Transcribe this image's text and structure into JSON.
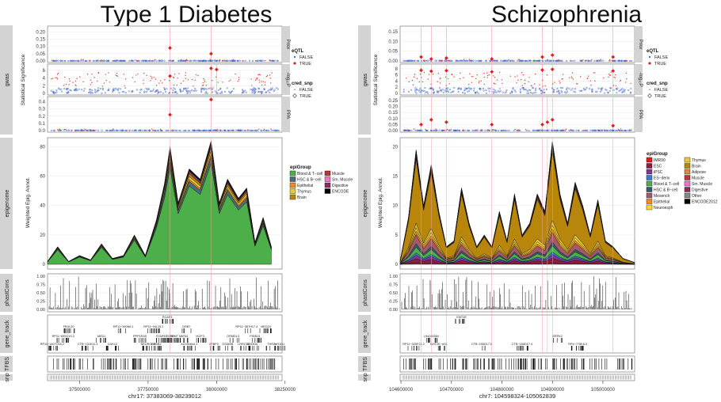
{
  "chart_data": [
    {
      "type": "multi-track-genome",
      "title": "Type 1 Diabetes",
      "xlabel": "chr17: 37383069-38239012",
      "xlim": [
        37383069,
        38239012
      ],
      "xticks": [
        37500000,
        37750000,
        38000000,
        38250000
      ],
      "xtick_labels": [
        "37500000",
        "37750000",
        "38000000",
        "38250000"
      ],
      "track_labels": [
        "gwas",
        "epigenome",
        "phastCons",
        "gene_track",
        "TFBS",
        "snp"
      ],
      "gwas_ylabel": "Statistical Significance",
      "gwas_facets": [
        {
          "name": "Prior",
          "ticks": [
            0.0,
            0.05,
            0.1,
            0.15,
            0.2
          ],
          "tick_labels": [
            "0.00",
            "0.05",
            "0.10",
            "0.15",
            "0.20"
          ],
          "ymax": 0.23,
          "highlights": [
            [
              37830000,
              0.09
            ],
            [
              37980000,
              0.05
            ]
          ]
        },
        {
          "name": "-log₁₀P",
          "ticks": [
            0,
            2,
            4,
            6
          ],
          "tick_labels": [
            "0",
            "2",
            "4",
            "6"
          ],
          "ymax": 7.2,
          "highlights": [
            [
              37830000,
              4.5
            ],
            [
              37980000,
              6.5
            ],
            [
              38000000,
              6.2
            ]
          ]
        },
        {
          "name": "PPA",
          "ticks": [
            0.0,
            0.1,
            0.2,
            0.3,
            0.4
          ],
          "tick_labels": [
            "0.0",
            "0.1",
            "0.2",
            "0.3",
            "0.4"
          ],
          "ymax": 0.45,
          "highlights": [
            [
              37830000,
              0.22
            ],
            [
              37980000,
              0.43
            ]
          ]
        }
      ],
      "gwas_legend": {
        "eqtl_title": "eQTL",
        "eqtl_items": [
          "FALSE",
          "TRUE"
        ],
        "cred_title": "cred_snp",
        "cred_items": [
          "FALSE",
          "TRUE"
        ]
      },
      "epigenome": {
        "ylabel": "Weighted Epig. Annot.",
        "yticks": [
          0,
          20,
          40,
          60,
          80
        ],
        "ymax": 84,
        "x": [
          37383069,
          37420000,
          37460000,
          37500000,
          37540000,
          37580000,
          37620000,
          37660000,
          37700000,
          37740000,
          37780000,
          37810000,
          37830000,
          37860000,
          37900000,
          37940000,
          37980000,
          38010000,
          38040000,
          38080000,
          38110000,
          38140000,
          38170000,
          38200000
        ],
        "total": [
          2,
          12,
          2,
          6,
          3,
          14,
          4,
          6,
          20,
          6,
          30,
          55,
          80,
          42,
          65,
          58,
          84,
          42,
          58,
          45,
          52,
          15,
          32,
          12
        ],
        "legend_title": "epiGroup",
        "legend_items": [
          "Blood & T−cell",
          "HSC & B−cell",
          "Epithelial",
          "Thymus",
          "Brain",
          "Muscle",
          "Sm. Muscle",
          "Digestive",
          "ENCODE"
        ],
        "series_colors": [
          "#4daf4a",
          "#4a6c7a",
          "#f08a24",
          "#e8c93a",
          "#b8860b",
          "#b03a3a",
          "#e878c8",
          "#8a2d5c",
          "#000000"
        ],
        "fractions": [
          0.82,
          0.05,
          0.02,
          0.03,
          0.03,
          0.01,
          0.01,
          0.01,
          0.02
        ]
      },
      "phastcons": {
        "yticks": [
          0,
          0.25,
          0.5,
          0.75,
          1
        ],
        "tick_labels": [
          "0.00",
          "0.25",
          "0.50",
          "0.75",
          "1.00"
        ]
      },
      "genes": [
        {
          "name": "RP11−690G19.3",
          "pos": 37440000,
          "row": 2
        },
        {
          "name": "FBXL20",
          "pos": 37460000,
          "row": 1
        },
        {
          "name": "RP11−1407O15.2",
          "pos": 37400000,
          "row": 3
        },
        {
          "name": "CTB−131K11.1",
          "pos": 37530000,
          "row": 3
        },
        {
          "name": "MED1",
          "pos": 37580000,
          "row": 2
        },
        {
          "name": "CDK12",
          "pos": 37620000,
          "row": 3
        },
        {
          "name": "RP11−390N6.1",
          "pos": 37660000,
          "row": 1
        },
        {
          "name": "PPP1R1B",
          "pos": 37720000,
          "row": 2
        },
        {
          "name": "NEUROD2",
          "pos": 37750000,
          "row": 3
        },
        {
          "name": "ERBB2",
          "pos": 37780000,
          "row": 3
        },
        {
          "name": "RP11−94L15.2",
          "pos": 37770000,
          "row": 1
        },
        {
          "name": "STARD3",
          "pos": 37800000,
          "row": 2
        },
        {
          "name": "TCAP",
          "pos": 37830000,
          "row": 2
        },
        {
          "name": "PNMT",
          "pos": 37845000,
          "row": 2
        },
        {
          "name": "PGAP3",
          "pos": 37820000,
          "row": 0
        },
        {
          "name": "MIEN1",
          "pos": 37880000,
          "row": 2
        },
        {
          "name": "IKZF3",
          "pos": 37940000,
          "row": 2
        },
        {
          "name": "GRB7",
          "pos": 37890000,
          "row": 1
        },
        {
          "name": "AC090844.1",
          "pos": 37900000,
          "row": 3
        },
        {
          "name": "ZPBP2",
          "pos": 37990000,
          "row": 3
        },
        {
          "name": "GSDMB",
          "pos": 38040000,
          "row": 3
        },
        {
          "name": "ORMDL3",
          "pos": 38060000,
          "row": 2
        },
        {
          "name": "RP11−387H17.4",
          "pos": 38110000,
          "row": 1
        },
        {
          "name": "LRRC3C",
          "pos": 38100000,
          "row": 3
        },
        {
          "name": "GSDMA",
          "pos": 38130000,
          "row": 3
        },
        {
          "name": "PSMD3",
          "pos": 38140000,
          "row": 2
        },
        {
          "name": "MED24",
          "pos": 38180000,
          "row": 1
        },
        {
          "name": "THRA",
          "pos": 38200000,
          "row": 3
        },
        {
          "name": "NR1D1",
          "pos": 38230000,
          "row": 3
        }
      ],
      "track_heights": [
        "",
        "",
        "",
        "",
        "",
        ""
      ]
    },
    {
      "type": "multi-track-genome",
      "title": "Schizophrenia",
      "xlabel": "chr7: 104598324-105062839",
      "xlim": [
        104598324,
        105062839
      ],
      "xticks": [
        104600000,
        104700000,
        104800000,
        104900000,
        105000000
      ],
      "xtick_labels": [
        "104600000",
        "104700000",
        "104800000",
        "104900000",
        "105000000"
      ],
      "track_labels": [
        "gwas",
        "epigenome",
        "phastCons",
        "gene_track",
        "TFBS",
        "snp"
      ],
      "gwas_ylabel": "Statistical Significance",
      "gwas_facets": [
        {
          "name": "Prior",
          "ticks": [
            0.0,
            0.05,
            0.1,
            0.15
          ],
          "tick_labels": [
            "0.00",
            "0.05",
            "0.10",
            "0.15"
          ],
          "ymax": 0.17,
          "highlights": [
            [
              104640000,
              0.02
            ],
            [
              104660000,
              0.01
            ],
            [
              104690000,
              0.015
            ],
            [
              104780000,
              0.01
            ],
            [
              104880000,
              0.02
            ],
            [
              104900000,
              0.03
            ],
            [
              105020000,
              0.02
            ]
          ]
        },
        {
          "name": "-log₁₀P",
          "ticks": [
            0,
            2,
            4,
            6,
            8
          ],
          "tick_labels": [
            "0",
            "2",
            "4",
            "6",
            "8"
          ],
          "ymax": 9,
          "highlights": [
            [
              104640000,
              7.5
            ],
            [
              104660000,
              7.2
            ],
            [
              104690000,
              7.4
            ],
            [
              104780000,
              7.0
            ],
            [
              104880000,
              7.6
            ],
            [
              104900000,
              7.8
            ],
            [
              105020000,
              7.3
            ]
          ]
        },
        {
          "name": "PPA",
          "ticks": [
            0.0,
            0.05,
            0.1,
            0.15,
            0.2,
            0.25
          ],
          "tick_labels": [
            "0.00",
            "0.05",
            "0.10",
            "0.15",
            "0.20",
            "0.25"
          ],
          "ymax": 0.27,
          "highlights": [
            [
              104640000,
              0.05
            ],
            [
              104660000,
              0.09
            ],
            [
              104690000,
              0.07
            ],
            [
              104780000,
              0.05
            ],
            [
              104880000,
              0.05
            ],
            [
              104890000,
              0.07
            ],
            [
              104900000,
              0.09
            ],
            [
              105020000,
              0.04
            ]
          ]
        }
      ],
      "gwas_legend": {
        "eqtl_title": "eQTL",
        "eqtl_items": [
          "FALSE",
          "TRUE"
        ],
        "cred_title": "cred_snp",
        "cred_items": [
          "FALSE",
          "TRUE"
        ]
      },
      "epigenome": {
        "ylabel": "Weighted Epig. Annot.",
        "yticks": [
          0,
          5,
          10,
          15,
          20
        ],
        "ymax": 21,
        "x": [
          104598324,
          104615000,
          104630000,
          104645000,
          104660000,
          104675000,
          104690000,
          104705000,
          104720000,
          104735000,
          104750000,
          104765000,
          104780000,
          104795000,
          104810000,
          104825000,
          104840000,
          104855000,
          104870000,
          104885000,
          104900000,
          104915000,
          104930000,
          104945000,
          104960000,
          104975000,
          104990000,
          105005000,
          105020000,
          105040000,
          105062839
        ],
        "total": [
          0.5,
          8,
          19.5,
          10,
          17,
          9,
          3,
          4,
          13,
          7,
          3,
          5,
          3,
          9,
          4,
          12,
          5,
          7,
          12,
          9,
          21,
          12,
          7,
          14,
          10,
          5,
          11,
          4,
          3,
          1,
          0.3
        ],
        "legend_title": "epiGroup",
        "legend_items": [
          "IMR90",
          "ESC",
          "iPSC",
          "ES−deriv",
          "Blood & T−cell",
          "HSC & B−cell",
          "Mesench",
          "Epithelial",
          "Neuroesph",
          "Thymus",
          "Brain",
          "Adipose",
          "Muscle",
          "Sm. Muscle",
          "Digestive",
          "Other",
          "ENCODE2012"
        ],
        "series_colors": [
          "#e41a1c",
          "#8b1e3f",
          "#7a3a9a",
          "#3b7dc4",
          "#4daf4a",
          "#3a5a6a",
          "#a05a6a",
          "#f08a24",
          "#ffd92f",
          "#e8c93a",
          "#b8860b",
          "#d8884a",
          "#b03a3a",
          "#e878c8",
          "#8a2d5c",
          "#888888",
          "#000000"
        ],
        "fractions": [
          0.01,
          0.04,
          0.03,
          0.02,
          0.05,
          0.03,
          0.08,
          0.03,
          0.03,
          0.04,
          0.56,
          0.02,
          0.02,
          0.01,
          0.01,
          0.01,
          0.01
        ]
      },
      "phastcons": {
        "yticks": [
          0,
          0.25,
          0.5,
          0.75,
          1
        ],
        "tick_labels": [
          "0.00",
          "0.25",
          "0.50",
          "0.75",
          "1.00"
        ]
      },
      "genes": [
        {
          "name": "KMT2E",
          "pos": 104720000,
          "row": 0
        },
        {
          "name": "LINC00384",
          "pos": 104660000,
          "row": 2
        },
        {
          "name": "SRPK2",
          "pos": 104910000,
          "row": 2
        },
        {
          "name": "RP11−325F22.2",
          "pos": 104625000,
          "row": 3
        },
        {
          "name": "KMT2E−AS1",
          "pos": 104675000,
          "row": 3
        },
        {
          "name": "CTB−155D17.6",
          "pos": 104760000,
          "row": 3
        },
        {
          "name": "CTB−155D17.4",
          "pos": 104840000,
          "row": 3
        },
        {
          "name": "RP4−778K6.3",
          "pos": 104950000,
          "row": 3
        }
      ],
      "track_heights": [
        "",
        "",
        "",
        "",
        "",
        ""
      ]
    }
  ]
}
